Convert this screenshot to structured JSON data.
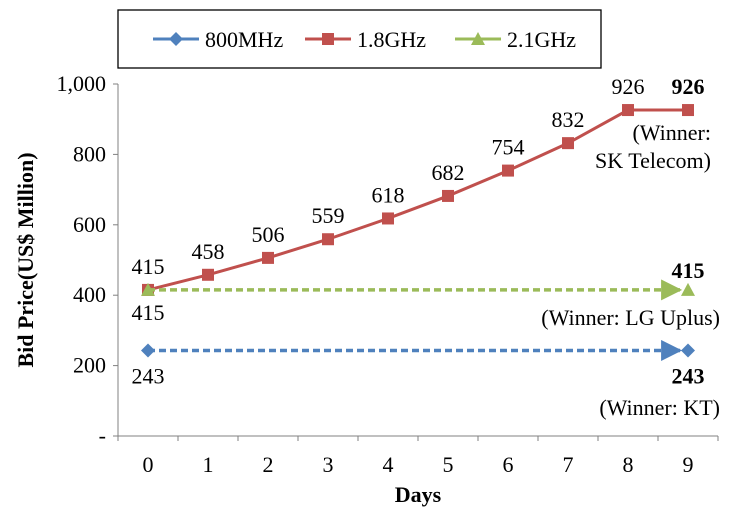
{
  "chart_data": {
    "type": "line",
    "xlabel": "Days",
    "ylabel": "Bid Price(US$ Million)",
    "categories": [
      "0",
      "1",
      "2",
      "3",
      "4",
      "5",
      "6",
      "7",
      "8",
      "9"
    ],
    "ylim": [
      0,
      1000
    ],
    "y_ticks": [
      0,
      200,
      400,
      600,
      800,
      1000
    ],
    "y_tick_labels": [
      "-",
      "200",
      "400",
      "600",
      "800",
      "1,000"
    ],
    "legend_position": "top",
    "series": [
      {
        "name": "800MHz",
        "color": "#4F81BD",
        "marker": "diamond",
        "style": "dashed-arrow",
        "x": [
          0,
          9
        ],
        "values": [
          243,
          243
        ],
        "labels": [
          "243",
          "243"
        ]
      },
      {
        "name": "1.8GHz",
        "color": "#C0504D",
        "marker": "square",
        "style": "solid",
        "x": [
          0,
          1,
          2,
          3,
          4,
          5,
          6,
          7,
          8,
          9
        ],
        "values": [
          415,
          458,
          506,
          559,
          618,
          682,
          754,
          832,
          926,
          926
        ],
        "labels": [
          "415",
          "458",
          "506",
          "559",
          "618",
          "682",
          "754",
          "832",
          "926",
          "926"
        ]
      },
      {
        "name": "2.1GHz",
        "color": "#9BBB59",
        "marker": "triangle",
        "style": "dashed-arrow",
        "x": [
          0,
          9
        ],
        "values": [
          415,
          415
        ],
        "labels": [
          "415",
          "415"
        ]
      }
    ],
    "annotations": [
      {
        "text_lines": [
          "(Winner:",
          "SK Telecom)"
        ],
        "series": "1.8GHz"
      },
      {
        "text_lines": [
          "(Winner: LG Uplus)"
        ],
        "series": "2.1GHz"
      },
      {
        "text_lines": [
          "(Winner: KT)"
        ],
        "series": "800MHz"
      }
    ]
  }
}
